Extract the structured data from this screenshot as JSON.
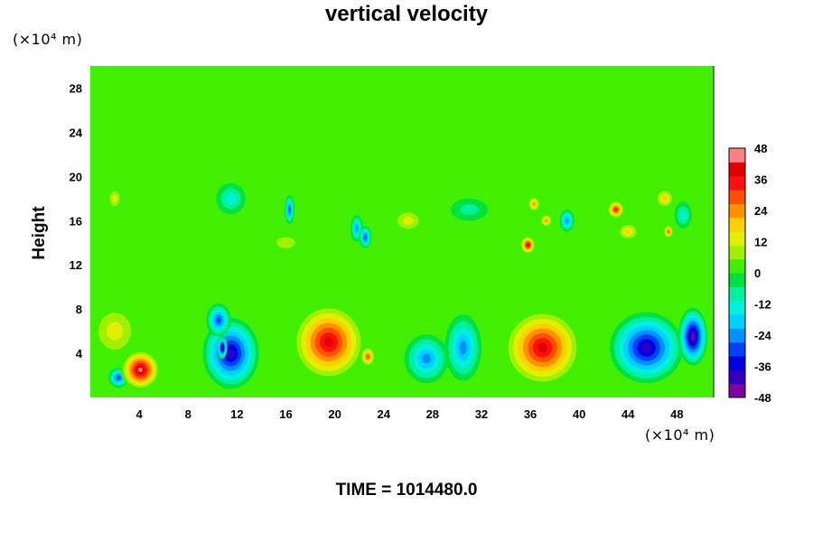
{
  "chart_data": {
    "type": "heatmap",
    "title": "vertical velocity",
    "xlabel": "",
    "ylabel": "Height",
    "x_unit": "(×10⁴ m)",
    "y_unit": "(×10⁴ m)",
    "xlim": [
      0,
      51
    ],
    "ylim": [
      0,
      30
    ],
    "xticks": [
      4,
      8,
      12,
      16,
      20,
      24,
      28,
      32,
      36,
      40,
      44,
      48
    ],
    "yticks": [
      4,
      8,
      12,
      16,
      20,
      24,
      28
    ],
    "colorbar": {
      "range": [
        -48,
        48
      ],
      "ticks": [
        48,
        36,
        24,
        12,
        0,
        -12,
        -24,
        -36,
        -48
      ],
      "colors": [
        "#8000a0",
        "#3000c0",
        "#0000e0",
        "#0040ff",
        "#0090ff",
        "#00d0ff",
        "#00f0e0",
        "#00f0a0",
        "#00e040",
        "#40f000",
        "#a0f000",
        "#e0f000",
        "#ffd000",
        "#ff9000",
        "#ff5000",
        "#ff1010",
        "#e00000",
        "#ff8080"
      ]
    },
    "background_value": 0,
    "features": [
      {
        "x": 2.3,
        "y": 1.8,
        "value": -30,
        "rx": 0.8,
        "ry": 0.9
      },
      {
        "x": 4.1,
        "y": 2.5,
        "value": 45,
        "rx": 1.6,
        "ry": 1.8
      },
      {
        "x": 11.5,
        "y": 4.0,
        "value": -40,
        "rx": 2.3,
        "ry": 3.2
      },
      {
        "x": 10.8,
        "y": 4.5,
        "value": -46,
        "rx": 0.4,
        "ry": 1.0
      },
      {
        "x": 10.5,
        "y": 7.0,
        "value": -30,
        "rx": 1.0,
        "ry": 1.5
      },
      {
        "x": 19.5,
        "y": 5.0,
        "value": 40,
        "rx": 3.0,
        "ry": 3.5
      },
      {
        "x": 22.7,
        "y": 3.7,
        "value": 30,
        "rx": 0.6,
        "ry": 0.9
      },
      {
        "x": 27.5,
        "y": 3.5,
        "value": -24,
        "rx": 1.8,
        "ry": 2.2
      },
      {
        "x": 30.5,
        "y": 4.5,
        "value": -22,
        "rx": 1.5,
        "ry": 3.0
      },
      {
        "x": 37.0,
        "y": 4.5,
        "value": 40,
        "rx": 3.2,
        "ry": 3.5
      },
      {
        "x": 45.5,
        "y": 4.5,
        "value": -38,
        "rx": 3.0,
        "ry": 3.2
      },
      {
        "x": 49.3,
        "y": 5.5,
        "value": -45,
        "rx": 1.2,
        "ry": 2.6
      },
      {
        "x": 16.3,
        "y": 17.0,
        "value": -30,
        "rx": 0.4,
        "ry": 1.3
      },
      {
        "x": 21.8,
        "y": 15.3,
        "value": -22,
        "rx": 0.5,
        "ry": 1.2
      },
      {
        "x": 22.5,
        "y": 14.5,
        "value": -28,
        "rx": 0.5,
        "ry": 1.0
      },
      {
        "x": 26.0,
        "y": 16.0,
        "value": 12,
        "rx": 1.3,
        "ry": 1.1
      },
      {
        "x": 35.8,
        "y": 13.8,
        "value": 40,
        "rx": 0.6,
        "ry": 0.8
      },
      {
        "x": 36.3,
        "y": 17.5,
        "value": 24,
        "rx": 0.5,
        "ry": 0.7
      },
      {
        "x": 37.3,
        "y": 16.0,
        "value": 24,
        "rx": 0.5,
        "ry": 0.6
      },
      {
        "x": 39.0,
        "y": 16.0,
        "value": -24,
        "rx": 0.6,
        "ry": 1.0
      },
      {
        "x": 43.0,
        "y": 17.0,
        "value": 36,
        "rx": 0.7,
        "ry": 0.8
      },
      {
        "x": 47.0,
        "y": 18.0,
        "value": 20,
        "rx": 0.8,
        "ry": 0.9
      },
      {
        "x": 47.3,
        "y": 15.0,
        "value": 28,
        "rx": 0.4,
        "ry": 0.6
      },
      {
        "x": 48.5,
        "y": 16.5,
        "value": -12,
        "rx": 0.7,
        "ry": 1.2
      },
      {
        "x": 2.0,
        "y": 18.0,
        "value": 12,
        "rx": 0.6,
        "ry": 1.0
      },
      {
        "x": 11.5,
        "y": 18.0,
        "value": -12,
        "rx": 1.2,
        "ry": 1.4
      },
      {
        "x": 16.0,
        "y": 14.0,
        "value": 8,
        "rx": 1.5,
        "ry": 1.0
      },
      {
        "x": 44.0,
        "y": 15.0,
        "value": 18,
        "rx": 0.9,
        "ry": 0.8
      },
      {
        "x": 31.0,
        "y": 17.0,
        "value": -8,
        "rx": 1.5,
        "ry": 1.0
      },
      {
        "x": 2.0,
        "y": 6.0,
        "value": 14,
        "rx": 2.0,
        "ry": 2.5
      }
    ]
  },
  "footer": {
    "time_label": "TIME = 1014480.0"
  }
}
